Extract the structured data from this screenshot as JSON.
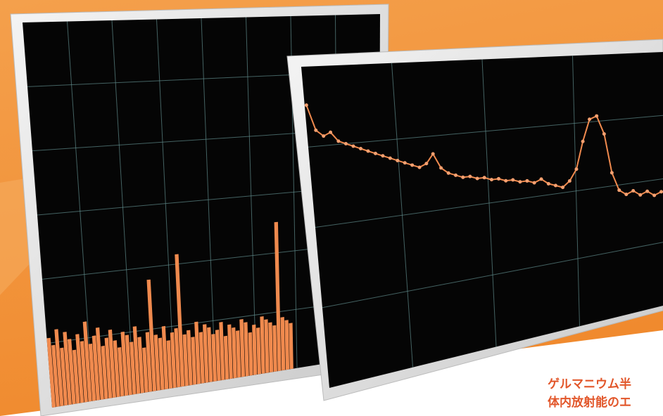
{
  "screens": [
    {
      "spectrum": [
        18,
        16,
        20,
        15,
        19,
        17,
        14,
        18,
        16,
        21,
        15,
        17,
        19,
        14,
        16,
        18,
        15,
        13,
        17,
        16,
        14,
        18,
        15,
        12,
        16,
        30,
        15,
        14,
        17,
        13,
        15,
        16,
        36,
        14,
        15,
        13,
        17,
        14,
        16,
        15,
        13,
        14,
        16,
        12,
        15,
        14,
        13,
        16,
        15,
        12,
        14,
        13,
        16,
        15,
        14,
        13,
        42,
        15,
        14,
        13
      ]
    },
    {
      "spectrum": [
        88,
        80,
        78,
        79,
        76,
        75,
        74,
        73,
        72,
        71,
        70,
        69,
        68,
        67,
        66,
        65,
        66,
        69,
        64,
        62,
        61,
        60,
        60,
        59,
        59,
        58,
        58,
        57,
        57,
        56,
        56,
        55,
        56,
        54,
        53,
        52,
        54,
        58,
        68,
        76,
        77,
        70,
        55,
        48,
        46,
        47,
        45,
        46,
        44,
        45
      ]
    }
  ],
  "caption": {
    "lines": [
      "ゲルマニウム半",
      "体内放射能のエ"
    ]
  }
}
